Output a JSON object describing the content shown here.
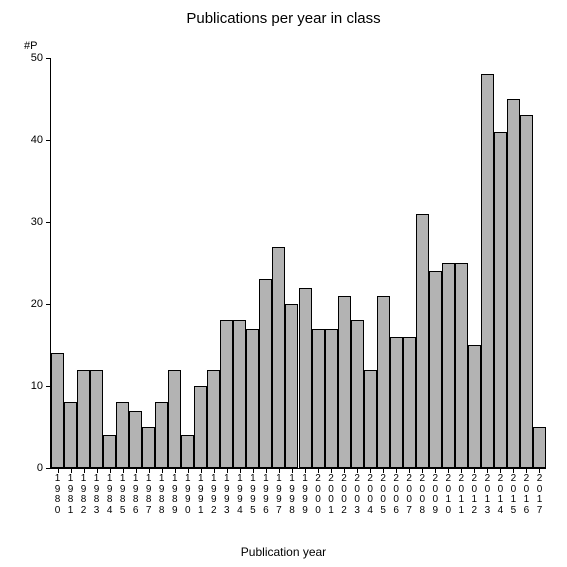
{
  "chart": {
    "type": "bar",
    "title": "Publications per year in class",
    "title_fontsize": 15,
    "ylabel": "#P",
    "xlabel": "Publication year",
    "label_fontsize": 12,
    "ylim": [
      0,
      50
    ],
    "ytick_step": 10,
    "yticks": [
      0,
      10,
      20,
      30,
      40,
      50
    ],
    "categories": [
      "1980",
      "1981",
      "1982",
      "1983",
      "1984",
      "1985",
      "1986",
      "1987",
      "1988",
      "1989",
      "1990",
      "1991",
      "1992",
      "1993",
      "1994",
      "1995",
      "1996",
      "1997",
      "1998",
      "1999",
      "2000",
      "2001",
      "2002",
      "2003",
      "2004",
      "2005",
      "2006",
      "2007",
      "2008",
      "2009",
      "2010",
      "2011",
      "2012",
      "2013",
      "2014",
      "2015",
      "2016",
      "2017"
    ],
    "values": [
      14,
      8,
      12,
      12,
      4,
      8,
      7,
      5,
      8,
      12,
      4,
      10,
      12,
      18,
      18,
      17,
      23,
      27,
      20,
      22,
      17,
      17,
      21,
      18,
      12,
      21,
      16,
      16,
      31,
      24,
      25,
      25,
      15,
      48,
      41,
      45,
      43,
      5
    ],
    "bar_color": "#b3b3b3",
    "bar_border_color": "#000000",
    "axis_color": "#000000",
    "background_color": "#ffffff",
    "tick_fontsize": 10,
    "bar_gap_ratio": 0.0
  }
}
